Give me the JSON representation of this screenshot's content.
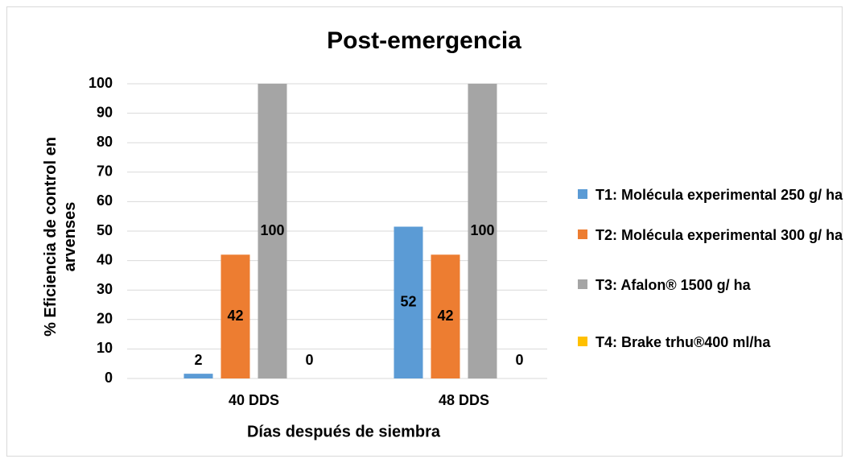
{
  "chart_data": {
    "type": "bar",
    "title": "Post-emergencia",
    "x_label": "Días después de siembra",
    "y_label": "% Eficiencia de control en arvenses",
    "categories": [
      "40 DDS",
      "48 DDS"
    ],
    "series": [
      {
        "name": "T1: Molécula experimental 250 g/ ha",
        "color": "#5b9bd5",
        "values": [
          1.6,
          51.5
        ],
        "value_labels": [
          "2",
          "52"
        ]
      },
      {
        "name": "T2: Molécula experimental 300 g/ ha",
        "color": "#ed7d31",
        "values": [
          42,
          42
        ]
      },
      {
        "name": "T3: Afalon® 1500 g/ ha",
        "color": "#a5a5a5",
        "values": [
          100,
          100
        ]
      },
      {
        "name": "T4: Brake trhu®400 ml/ha",
        "color": "#ffc000",
        "values": [
          0,
          0
        ]
      }
    ],
    "ylim": [
      0,
      100
    ],
    "yticks": [
      0,
      10,
      20,
      30,
      40,
      50,
      60,
      70,
      80,
      90,
      100
    ],
    "grid": true,
    "legend": "right"
  }
}
